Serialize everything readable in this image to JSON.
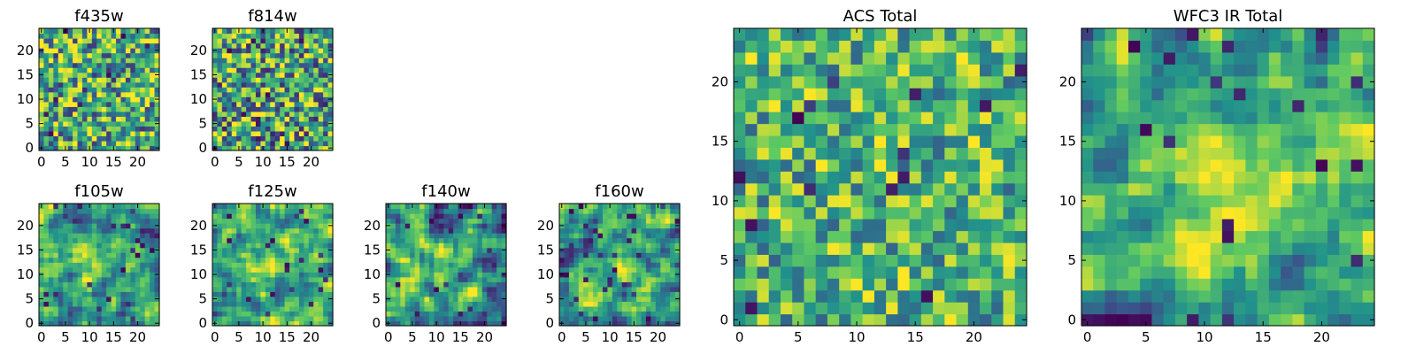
{
  "colors": {
    "colormap": "viridis",
    "viridis_stops": [
      "#440154",
      "#3b528b",
      "#21918c",
      "#5ec962",
      "#fde725"
    ],
    "frame": "#000000",
    "background": "#ffffff"
  },
  "chart_data": [
    {
      "id": "f435w",
      "type": "heatmap",
      "title": "f435w",
      "grid_size": 25,
      "xlim": [
        0,
        24
      ],
      "ylim": [
        0,
        24
      ],
      "xticks": [
        "0",
        "5",
        "10",
        "15",
        "20"
      ],
      "yticks": [
        "0",
        "5",
        "10",
        "15",
        "20"
      ],
      "value_range": [
        0,
        1
      ],
      "pattern": "noise",
      "seed": 11,
      "bias": 0.62,
      "contrast": 0.9
    },
    {
      "id": "f814w",
      "type": "heatmap",
      "title": "f814w",
      "grid_size": 25,
      "xlim": [
        0,
        24
      ],
      "ylim": [
        0,
        24
      ],
      "xticks": [
        "0",
        "5",
        "10",
        "15",
        "20"
      ],
      "yticks": [
        "0",
        "5",
        "10",
        "15",
        "20"
      ],
      "value_range": [
        0,
        1
      ],
      "pattern": "noise",
      "seed": 23,
      "bias": 0.6,
      "contrast": 0.95
    },
    {
      "id": "f105w",
      "type": "heatmap",
      "title": "f105w",
      "grid_size": 25,
      "xlim": [
        0,
        24
      ],
      "ylim": [
        0,
        24
      ],
      "xticks": [
        "0",
        "5",
        "10",
        "15",
        "20"
      ],
      "yticks": [
        "0",
        "5",
        "10",
        "15",
        "20"
      ],
      "value_range": [
        0,
        1
      ],
      "pattern": "smooth-source",
      "seed": 37,
      "bias": 0.55,
      "contrast": 0.8,
      "source_center": [
        11,
        12
      ],
      "source_strength": 0.25
    },
    {
      "id": "f125w",
      "type": "heatmap",
      "title": "f125w",
      "grid_size": 25,
      "xlim": [
        0,
        24
      ],
      "ylim": [
        0,
        24
      ],
      "xticks": [
        "0",
        "5",
        "10",
        "15",
        "20"
      ],
      "yticks": [
        "0",
        "5",
        "10",
        "15",
        "20"
      ],
      "value_range": [
        0,
        1
      ],
      "pattern": "smooth-source",
      "seed": 41,
      "bias": 0.6,
      "contrast": 0.8,
      "source_center": [
        12,
        13
      ],
      "source_strength": 0.28
    },
    {
      "id": "f140w",
      "type": "heatmap",
      "title": "f140w",
      "grid_size": 25,
      "xlim": [
        0,
        24
      ],
      "ylim": [
        0,
        24
      ],
      "xticks": [
        "0",
        "5",
        "10",
        "15",
        "20"
      ],
      "yticks": [
        "0",
        "5",
        "10",
        "15",
        "20"
      ],
      "value_range": [
        0,
        1
      ],
      "pattern": "smooth-source",
      "seed": 53,
      "bias": 0.55,
      "contrast": 0.85,
      "source_center": [
        11,
        11
      ],
      "source_strength": 0.15
    },
    {
      "id": "f160w",
      "type": "heatmap",
      "title": "f160w",
      "grid_size": 25,
      "xlim": [
        0,
        24
      ],
      "ylim": [
        0,
        24
      ],
      "xticks": [
        "0",
        "5",
        "10",
        "15",
        "20"
      ],
      "yticks": [
        "0",
        "5",
        "10",
        "15",
        "20"
      ],
      "value_range": [
        0,
        1
      ],
      "pattern": "smooth-source",
      "seed": 67,
      "bias": 0.58,
      "contrast": 0.85,
      "source_center": [
        12,
        12
      ],
      "source_strength": 0.15
    },
    {
      "id": "acs_total",
      "type": "heatmap",
      "title": "ACS Total",
      "grid_size": 25,
      "xlim": [
        0,
        24
      ],
      "ylim": [
        0,
        24
      ],
      "xticks": [
        "0",
        "5",
        "10",
        "15",
        "20"
      ],
      "yticks": [
        "0",
        "5",
        "10",
        "15",
        "20"
      ],
      "value_range": [
        0,
        1
      ],
      "pattern": "noise",
      "seed": 79,
      "bias": 0.66,
      "contrast": 0.7
    },
    {
      "id": "wfc3_ir_total",
      "type": "heatmap",
      "title": "WFC3 IR Total",
      "grid_size": 25,
      "xlim": [
        0,
        24
      ],
      "ylim": [
        0,
        24
      ],
      "xticks": [
        "0",
        "5",
        "10",
        "15",
        "20"
      ],
      "yticks": [
        "0",
        "5",
        "10",
        "15",
        "20"
      ],
      "value_range": [
        0,
        1
      ],
      "pattern": "smooth-source",
      "seed": 97,
      "bias": 0.6,
      "contrast": 0.7,
      "source_center": [
        12,
        11
      ],
      "source_strength": 0.3
    }
  ]
}
